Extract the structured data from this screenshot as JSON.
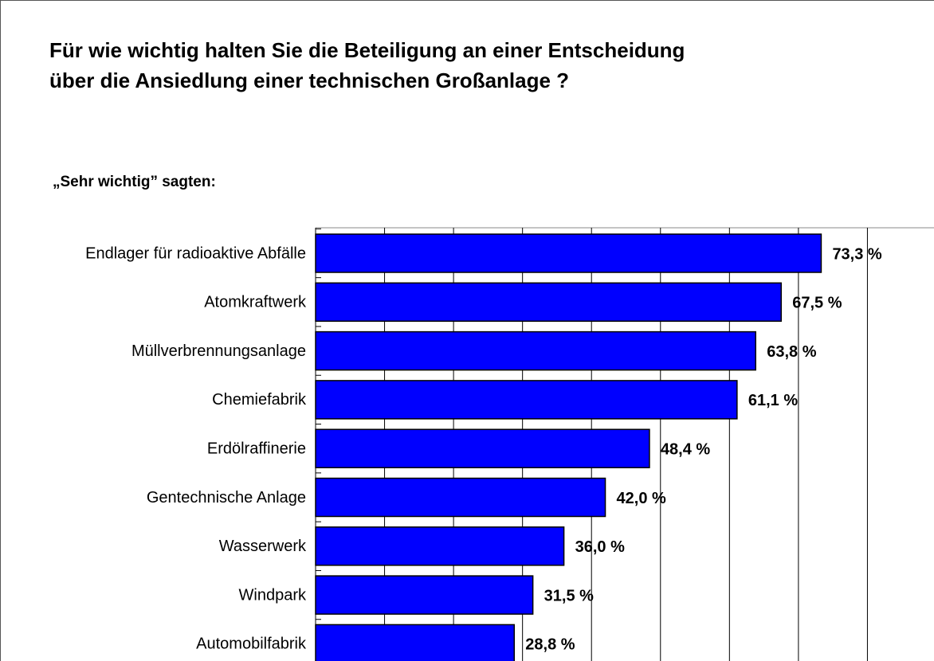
{
  "chart_data": {
    "type": "bar",
    "orientation": "horizontal",
    "title": "Für wie wichtig halten Sie die Beteiligung an einer Entscheidung über die Ansiedlung einer technischen Großanlage ?",
    "subtitle": "„Sehr wichtig” sagten:",
    "categories": [
      "Endlager für radioaktive Abfälle",
      "Atomkraftwerk",
      "Müllverbrennungsanlage",
      "Chemiefabrik",
      "Erdölraffinerie",
      "Gentechnische Anlage",
      "Wasserwerk",
      "Windpark",
      "Automobilfabrik"
    ],
    "values": [
      73.3,
      67.5,
      63.8,
      61.1,
      48.4,
      42.0,
      36.0,
      31.5,
      28.8
    ],
    "value_labels": [
      "73,3 %",
      "67,5 %",
      "63,8 %",
      "61,1 %",
      "48,4 %",
      "42,0 %",
      "36,0 %",
      "31,5 %",
      "28,8 %"
    ],
    "color": "#0000ff",
    "xlim": [
      0,
      90
    ],
    "xticks": [
      0,
      10,
      20,
      30,
      40,
      50,
      60,
      70,
      80,
      90
    ],
    "grid": true
  }
}
